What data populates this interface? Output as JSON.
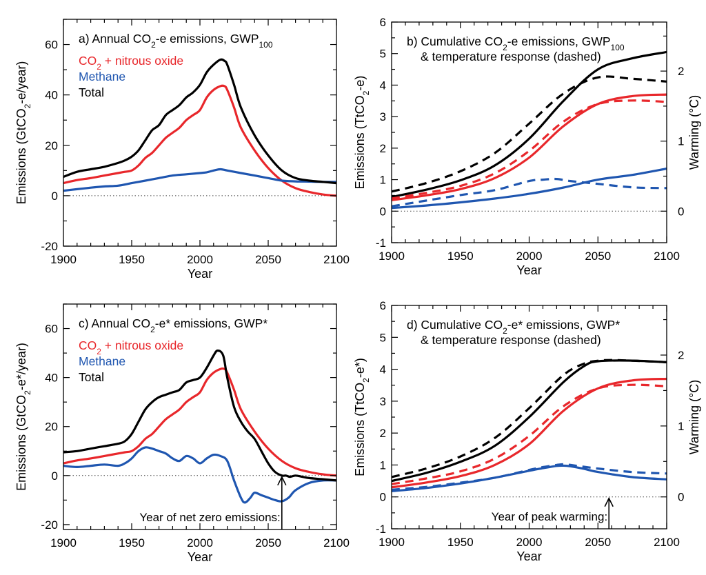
{
  "colors": {
    "co2": "#e8272b",
    "methane": "#1f56b0",
    "total": "#000000"
  },
  "panels": [
    {
      "id": "a",
      "title": [
        "a) Annual CO",
        "2",
        "-e emissions, GWP",
        "100",
        ""
      ],
      "title2": "",
      "xlabel": "Year",
      "ylabel": [
        "Emissions (GtCO",
        "2",
        "-e/year)"
      ],
      "ylabel_right": "",
      "legend": [
        {
          "parts": [
            "CO",
            "2",
            " + nitrous oxide"
          ],
          "color": "#e8272b"
        },
        {
          "parts": [
            "Methane"
          ],
          "color": "#1f56b0"
        },
        {
          "parts": [
            "Total"
          ],
          "color": "#000000"
        }
      ],
      "annotation": "",
      "arrow_year": null
    },
    {
      "id": "b",
      "title": [
        "b) Cumulative CO",
        "2",
        "-e emissions, GWP",
        "100",
        ""
      ],
      "title2": "& temperature response (dashed)",
      "xlabel": "Year",
      "ylabel": [
        "Emissions (TtCO",
        "2",
        "-e)"
      ],
      "ylabel_right": "Warming (°C)",
      "legend": [],
      "annotation": "",
      "arrow_year": null
    },
    {
      "id": "c",
      "title": [
        "c) Annual CO",
        "2",
        "-e* emissions, GWP*",
        "",
        ""
      ],
      "title2": "",
      "xlabel": "Year",
      "ylabel": [
        "Emissions (GtCO",
        "2",
        "-e*/year)"
      ],
      "ylabel_right": "",
      "legend": [
        {
          "parts": [
            "CO",
            "2",
            " + nitrous oxide"
          ],
          "color": "#e8272b"
        },
        {
          "parts": [
            "Methane"
          ],
          "color": "#1f56b0"
        },
        {
          "parts": [
            "Total"
          ],
          "color": "#000000"
        }
      ],
      "annotation": "Year of net zero emissions:",
      "arrow_year": 2060
    },
    {
      "id": "d",
      "title": [
        "d) Cumulative CO",
        "2",
        "-e* emissions, GWP*",
        "",
        ""
      ],
      "title2": "& temperature response (dashed)",
      "xlabel": "Year",
      "ylabel": [
        "Emissions (TtCO",
        "2",
        "-e*)"
      ],
      "ylabel_right": "Warming (°C)",
      "legend": [],
      "annotation": "Year of peak warming:",
      "arrow_year": 2058
    }
  ],
  "chart_data": [
    {
      "panel": "a",
      "type": "line",
      "title": "a) Annual CO2-e emissions, GWP100",
      "xlabel": "Year",
      "ylabel": "Emissions (GtCO2-e/year)",
      "xlim": [
        1900,
        2100
      ],
      "ylim": [
        -20,
        70
      ],
      "xticks": [
        1900,
        1950,
        2000,
        2050,
        2100
      ],
      "yticks": [
        -20,
        0,
        20,
        40,
        60
      ],
      "grid": false,
      "zero_line": true,
      "legend_position": "top-left",
      "series": [
        {
          "name": "CO2 + nitrous oxide",
          "color": "#e8272b",
          "style": "solid",
          "x": [
            1900,
            1910,
            1920,
            1930,
            1940,
            1945,
            1950,
            1955,
            1960,
            1965,
            1970,
            1975,
            1980,
            1985,
            1990,
            1995,
            2000,
            2005,
            2010,
            2015,
            2018,
            2020,
            2025,
            2030,
            2040,
            2050,
            2060,
            2070,
            2080,
            2090,
            2100
          ],
          "y": [
            5,
            6.2,
            7,
            8,
            9,
            9.5,
            10,
            12,
            15,
            17,
            20,
            23,
            25,
            27,
            30,
            32,
            34,
            39,
            42,
            43.5,
            43.5,
            42,
            35,
            27,
            18,
            11,
            6,
            3,
            1.5,
            0.5,
            0
          ]
        },
        {
          "name": "Methane",
          "color": "#1f56b0",
          "style": "solid",
          "x": [
            1900,
            1910,
            1920,
            1930,
            1940,
            1950,
            1960,
            1970,
            1980,
            1990,
            2000,
            2005,
            2010,
            2015,
            2020,
            2030,
            2040,
            2050,
            2060,
            2070,
            2080,
            2090,
            2100
          ],
          "y": [
            2,
            2.6,
            3.2,
            3.7,
            4,
            5,
            6,
            7,
            8,
            8.5,
            9,
            9.3,
            10,
            10.5,
            10,
            9,
            8,
            7,
            6,
            5.7,
            5.6,
            5.5,
            5.5
          ]
        },
        {
          "name": "Total",
          "color": "#000000",
          "style": "solid",
          "x": [
            1900,
            1910,
            1920,
            1930,
            1940,
            1945,
            1950,
            1955,
            1960,
            1965,
            1970,
            1975,
            1980,
            1985,
            1990,
            1995,
            2000,
            2005,
            2010,
            2015,
            2018,
            2020,
            2025,
            2030,
            2040,
            2050,
            2060,
            2070,
            2080,
            2090,
            2100
          ],
          "y": [
            7.5,
            9.5,
            10.5,
            11.5,
            13,
            14,
            15.5,
            18,
            22,
            26,
            28,
            32,
            34,
            36,
            39,
            41,
            44,
            49,
            52,
            54,
            53.5,
            52,
            44,
            35,
            24,
            16,
            10,
            7,
            6,
            5.5,
            5
          ]
        }
      ]
    },
    {
      "panel": "b",
      "type": "line",
      "title": "b) Cumulative CO2-e emissions, GWP100 & temperature response (dashed)",
      "xlabel": "Year",
      "ylabel": "Emissions (TtCO2-e)",
      "ylabel_right": "Warming (°C)",
      "xlim": [
        1900,
        2100
      ],
      "ylim": [
        -1,
        6
      ],
      "y2lim": [
        -0.45,
        2.7
      ],
      "xticks": [
        1900,
        1950,
        2000,
        2050,
        2100
      ],
      "yticks": [
        -1,
        0,
        1,
        2,
        3,
        4,
        5,
        6
      ],
      "y2ticks": [
        0,
        1,
        2
      ],
      "grid": false,
      "zero_line": true,
      "series": [
        {
          "name": "CO2 + nitrous oxide",
          "color": "#e8272b",
          "style": "solid",
          "axis": "left",
          "x": [
            1900,
            1925,
            1950,
            1975,
            2000,
            2025,
            2050,
            2075,
            2100
          ],
          "y": [
            0.35,
            0.5,
            0.7,
            1.05,
            1.7,
            2.7,
            3.4,
            3.65,
            3.7
          ]
        },
        {
          "name": "Methane",
          "color": "#1f56b0",
          "style": "solid",
          "axis": "left",
          "x": [
            1900,
            1925,
            1950,
            1975,
            2000,
            2025,
            2050,
            2075,
            2100
          ],
          "y": [
            0.1,
            0.18,
            0.28,
            0.4,
            0.55,
            0.75,
            1.0,
            1.15,
            1.35
          ]
        },
        {
          "name": "Total",
          "color": "#000000",
          "style": "solid",
          "axis": "left",
          "x": [
            1900,
            1925,
            1950,
            1975,
            2000,
            2025,
            2050,
            2075,
            2100
          ],
          "y": [
            0.45,
            0.68,
            0.98,
            1.45,
            2.3,
            3.5,
            4.5,
            4.85,
            5.05
          ]
        },
        {
          "name": "CO2 + nitrous oxide (warming)",
          "color": "#e8272b",
          "style": "dashed",
          "axis": "right",
          "x": [
            1900,
            1925,
            1950,
            1975,
            2000,
            2025,
            2050,
            2075,
            2100
          ],
          "y": [
            0.18,
            0.26,
            0.36,
            0.54,
            0.86,
            1.28,
            1.53,
            1.58,
            1.56
          ]
        },
        {
          "name": "Methane (warming)",
          "color": "#1f56b0",
          "style": "dashed",
          "axis": "right",
          "x": [
            1900,
            1925,
            1950,
            1975,
            2000,
            2010,
            2020,
            2030,
            2050,
            2075,
            2100
          ],
          "y": [
            0.07,
            0.15,
            0.23,
            0.3,
            0.43,
            0.45,
            0.46,
            0.43,
            0.39,
            0.34,
            0.33
          ]
        },
        {
          "name": "Total (warming)",
          "color": "#000000",
          "style": "dashed",
          "axis": "right",
          "x": [
            1900,
            1925,
            1950,
            1975,
            2000,
            2025,
            2050,
            2075,
            2100
          ],
          "y": [
            0.28,
            0.4,
            0.57,
            0.83,
            1.25,
            1.68,
            1.91,
            1.89,
            1.85
          ]
        }
      ]
    },
    {
      "panel": "c",
      "type": "line",
      "title": "c) Annual CO2-e* emissions, GWP*",
      "xlabel": "Year",
      "ylabel": "Emissions (GtCO2-e*/year)",
      "xlim": [
        1900,
        2100
      ],
      "ylim": [
        -22,
        70
      ],
      "xticks": [
        1900,
        1950,
        2000,
        2050,
        2100
      ],
      "yticks": [
        -20,
        0,
        20,
        40,
        60
      ],
      "grid": false,
      "zero_line": true,
      "legend_position": "top-left",
      "series": [
        {
          "name": "CO2 + nitrous oxide",
          "color": "#e8272b",
          "style": "solid",
          "x": [
            1900,
            1910,
            1920,
            1930,
            1940,
            1945,
            1950,
            1955,
            1960,
            1965,
            1970,
            1975,
            1980,
            1985,
            1990,
            1995,
            2000,
            2005,
            2010,
            2015,
            2018,
            2020,
            2025,
            2030,
            2040,
            2050,
            2060,
            2070,
            2080,
            2090,
            2100
          ],
          "y": [
            5,
            6.2,
            7,
            8,
            9,
            9.5,
            10,
            12,
            15,
            17,
            20,
            23,
            25,
            27,
            30,
            32,
            34,
            39,
            42,
            43.5,
            43.5,
            42,
            35,
            27,
            18,
            11,
            6,
            3,
            1.5,
            0.5,
            0
          ]
        },
        {
          "name": "Methane",
          "color": "#1f56b0",
          "style": "solid",
          "x": [
            1900,
            1910,
            1920,
            1930,
            1940,
            1945,
            1950,
            1955,
            1960,
            1965,
            1970,
            1975,
            1980,
            1985,
            1990,
            1995,
            2000,
            2005,
            2010,
            2015,
            2020,
            2025,
            2030,
            2033,
            2037,
            2040,
            2045,
            2050,
            2055,
            2060,
            2065,
            2070,
            2080,
            2090,
            2100
          ],
          "y": [
            4,
            3.5,
            4,
            4.5,
            4,
            5,
            7,
            10,
            11.5,
            11,
            10,
            9,
            7,
            6,
            8,
            7,
            5,
            7,
            8.5,
            8,
            6,
            -2,
            -9,
            -11,
            -9,
            -7,
            -8,
            -9,
            -10,
            -10.5,
            -9,
            -6,
            -3,
            -2,
            -2
          ]
        },
        {
          "name": "Total",
          "color": "#000000",
          "style": "solid",
          "x": [
            1900,
            1910,
            1920,
            1930,
            1940,
            1945,
            1950,
            1955,
            1960,
            1965,
            1970,
            1975,
            1980,
            1985,
            1990,
            1995,
            2000,
            2005,
            2010,
            2013,
            2017,
            2020,
            2025,
            2030,
            2035,
            2040,
            2045,
            2050,
            2055,
            2060,
            2063,
            2066,
            2070,
            2075,
            2080,
            2090,
            2100
          ],
          "y": [
            9.5,
            10,
            11,
            12,
            13,
            14,
            17,
            22,
            27,
            30,
            32,
            33,
            34,
            35,
            38,
            39,
            40,
            44,
            49,
            51,
            49,
            40,
            28,
            22,
            18,
            15,
            10,
            5,
            1.5,
            0,
            0,
            -0.5,
            0,
            -0.5,
            -1,
            -1.5,
            -2
          ]
        }
      ]
    },
    {
      "panel": "d",
      "type": "line",
      "title": "d) Cumulative CO2-e* emissions, GWP* & temperature response (dashed)",
      "xlabel": "Year",
      "ylabel": "Emissions (TtCO2-e*)",
      "ylabel_right": "Warming (°C)",
      "xlim": [
        1900,
        2100
      ],
      "ylim": [
        -1,
        6
      ],
      "y2lim": [
        -0.45,
        2.7
      ],
      "xticks": [
        1900,
        1950,
        2000,
        2050,
        2100
      ],
      "yticks": [
        -1,
        0,
        1,
        2,
        3,
        4,
        5,
        6
      ],
      "y2ticks": [
        0,
        1,
        2
      ],
      "grid": false,
      "zero_line": true,
      "series": [
        {
          "name": "CO2 + nitrous oxide",
          "color": "#e8272b",
          "style": "solid",
          "axis": "left",
          "x": [
            1900,
            1925,
            1950,
            1975,
            2000,
            2025,
            2050,
            2075,
            2100
          ],
          "y": [
            0.3,
            0.45,
            0.65,
            1.0,
            1.65,
            2.7,
            3.4,
            3.65,
            3.7
          ]
        },
        {
          "name": "Methane",
          "color": "#1f56b0",
          "style": "solid",
          "axis": "left",
          "x": [
            1900,
            1925,
            1950,
            1975,
            2000,
            2010,
            2020,
            2025,
            2030,
            2040,
            2050,
            2075,
            2100
          ],
          "y": [
            0.18,
            0.28,
            0.42,
            0.6,
            0.82,
            0.9,
            0.97,
            0.98,
            0.96,
            0.88,
            0.78,
            0.62,
            0.55
          ]
        },
        {
          "name": "Total",
          "color": "#000000",
          "style": "solid",
          "axis": "left",
          "x": [
            1900,
            1925,
            1950,
            1975,
            2000,
            2025,
            2040,
            2050,
            2075,
            2100
          ],
          "y": [
            0.5,
            0.75,
            1.1,
            1.6,
            2.5,
            3.6,
            4.1,
            4.25,
            4.27,
            4.22
          ]
        },
        {
          "name": "CO2 + nitrous oxide (warming)",
          "color": "#e8272b",
          "style": "dashed",
          "axis": "right",
          "x": [
            1900,
            1925,
            1950,
            1975,
            2000,
            2025,
            2050,
            2075,
            2100
          ],
          "y": [
            0.18,
            0.26,
            0.36,
            0.54,
            0.86,
            1.28,
            1.53,
            1.58,
            1.56
          ]
        },
        {
          "name": "Methane (warming)",
          "color": "#1f56b0",
          "style": "dashed",
          "axis": "right",
          "x": [
            1900,
            1925,
            1950,
            1975,
            2000,
            2010,
            2020,
            2025,
            2030,
            2050,
            2075,
            2100
          ],
          "y": [
            0.1,
            0.14,
            0.2,
            0.27,
            0.38,
            0.42,
            0.45,
            0.46,
            0.45,
            0.4,
            0.35,
            0.33
          ]
        },
        {
          "name": "Total (warming)",
          "color": "#000000",
          "style": "dashed",
          "axis": "right",
          "x": [
            1900,
            1925,
            1950,
            1975,
            2000,
            2025,
            2040,
            2050,
            2060,
            2075,
            2100
          ],
          "y": [
            0.28,
            0.4,
            0.57,
            0.83,
            1.25,
            1.72,
            1.88,
            1.92,
            1.93,
            1.92,
            1.9
          ]
        }
      ]
    }
  ]
}
